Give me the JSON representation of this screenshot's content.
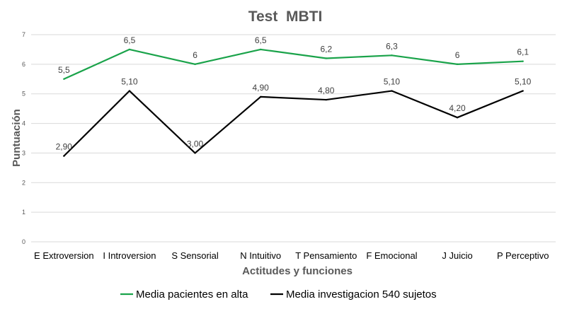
{
  "chart_data": {
    "type": "line",
    "title": "Test  MBTI",
    "xlabel": "Actitudes y funciones",
    "ylabel": "Puntuación",
    "ylim": [
      0,
      7
    ],
    "yticks": [
      "0",
      "1",
      "2",
      "3",
      "4",
      "5",
      "6",
      "7"
    ],
    "grid": true,
    "legend_position": "bottom",
    "categories": [
      "E Extroversion",
      "I Introversion",
      "S Sensorial",
      "N Intuitivo",
      "T Pensamiento",
      "F Emocional",
      "J Juicio",
      "P Perceptivo"
    ],
    "series": [
      {
        "name": "Media pacientes en alta",
        "color": "#1aa34a",
        "values": [
          5.5,
          6.5,
          6,
          6.5,
          6.2,
          6.3,
          6,
          6.1
        ],
        "labels": [
          "5,5",
          "6,5",
          "6",
          "6,5",
          "6,2",
          "6,3",
          "6",
          "6,1"
        ]
      },
      {
        "name": "Media investigacion 540 sujetos",
        "color": "#000000",
        "values": [
          2.9,
          5.1,
          3.0,
          4.9,
          4.8,
          5.1,
          4.2,
          5.1
        ],
        "labels": [
          "2,90",
          "5,10",
          "3,00",
          "4,90",
          "4,80",
          "5,10",
          "4,20",
          "5,10"
        ]
      }
    ]
  }
}
